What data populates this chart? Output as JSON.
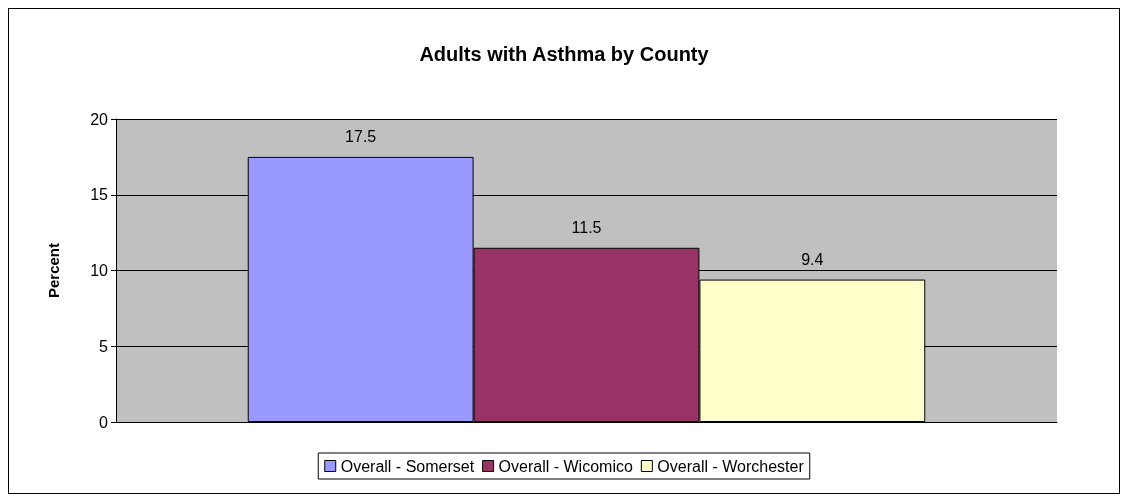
{
  "chart_data": {
    "type": "bar",
    "title": "Adults with Asthma by County",
    "ylabel": "Percent",
    "categories": [
      null
    ],
    "series": [
      {
        "name": "Overall - Somerset",
        "color": "#9999ff",
        "values": [
          17.5
        ]
      },
      {
        "name": "Overall - Wicomico",
        "color": "#993366",
        "values": [
          11.5
        ]
      },
      {
        "name": "Overall - Worchester",
        "color": "#ffffcc",
        "values": [
          9.4
        ]
      }
    ],
    "ylim": [
      0,
      20
    ],
    "yticks": [
      0,
      5,
      10,
      15,
      20
    ],
    "grid": "y",
    "legend": "bottom",
    "data_labels": true
  }
}
